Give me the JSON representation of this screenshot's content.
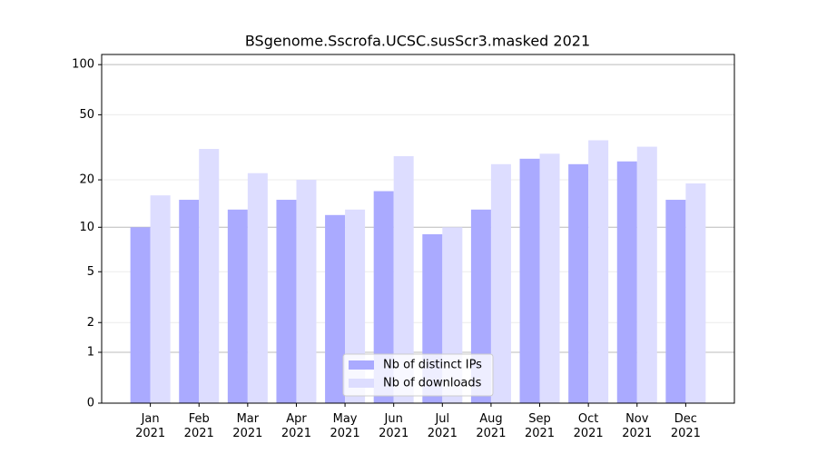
{
  "chart_data": {
    "type": "bar",
    "title": "BSgenome.Sscrofa.UCSC.susScr3.masked 2021",
    "categories": [
      "Jan 2021",
      "Feb 2021",
      "Mar 2021",
      "Apr 2021",
      "May 2021",
      "Jun 2021",
      "Jul 2021",
      "Aug 2021",
      "Sep 2021",
      "Oct 2021",
      "Nov 2021",
      "Dec 2021"
    ],
    "series": [
      {
        "name": "Nb of distinct IPs",
        "color": "#aaaaff",
        "values": [
          10,
          15,
          13,
          15,
          12,
          17,
          9,
          13,
          27,
          25,
          26,
          15
        ]
      },
      {
        "name": "Nb of downloads",
        "color": "#ddddff",
        "values": [
          16,
          31,
          22,
          20,
          13,
          28,
          10,
          25,
          29,
          35,
          32,
          19
        ]
      }
    ],
    "yscale": "log1p",
    "ylim": [
      0,
      115
    ],
    "yticks": [
      0,
      1,
      2,
      5,
      10,
      20,
      50,
      100
    ],
    "grid": true,
    "legend": "lower center"
  }
}
